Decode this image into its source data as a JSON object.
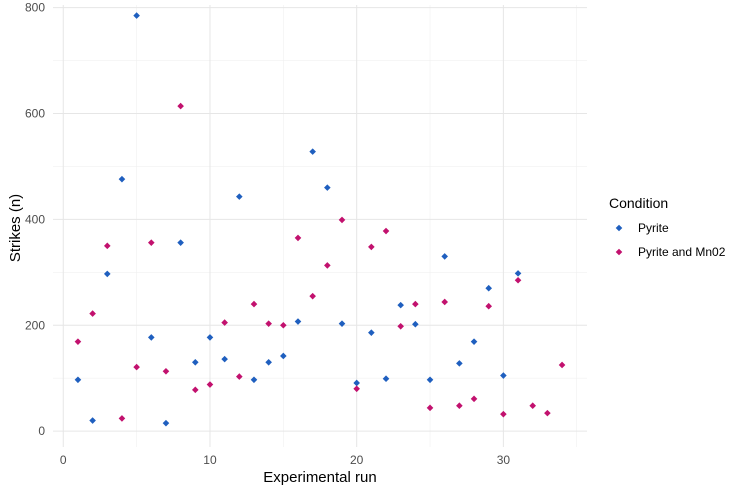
{
  "chart_data": {
    "type": "scatter",
    "title": "",
    "xlabel": "Experimental run",
    "ylabel": "Strikes (n)",
    "xlim": [
      -0.7,
      35.7
    ],
    "ylim": [
      -30,
      805
    ],
    "x_ticks": [
      0,
      10,
      20,
      30
    ],
    "x_tick_labels": [
      "0",
      "10",
      "20",
      "30"
    ],
    "y_ticks": [
      0,
      200,
      400,
      600,
      800
    ],
    "y_tick_labels": [
      "0",
      "200",
      "400",
      "600",
      "800"
    ],
    "grid": true,
    "legend": {
      "title": "Condition",
      "position": "right"
    },
    "series": [
      {
        "name": "Pyrite",
        "color": "#1F5FBF",
        "points": [
          {
            "x": 1,
            "y": 97
          },
          {
            "x": 2,
            "y": 20
          },
          {
            "x": 3,
            "y": 297
          },
          {
            "x": 4,
            "y": 476
          },
          {
            "x": 5,
            "y": 785
          },
          {
            "x": 6,
            "y": 177
          },
          {
            "x": 7,
            "y": 15
          },
          {
            "x": 8,
            "y": 356
          },
          {
            "x": 9,
            "y": 130
          },
          {
            "x": 10,
            "y": 177
          },
          {
            "x": 11,
            "y": 136
          },
          {
            "x": 12,
            "y": 443
          },
          {
            "x": 13,
            "y": 97
          },
          {
            "x": 14,
            "y": 130
          },
          {
            "x": 15,
            "y": 142
          },
          {
            "x": 16,
            "y": 207
          },
          {
            "x": 17,
            "y": 528
          },
          {
            "x": 18,
            "y": 460
          },
          {
            "x": 19,
            "y": 203
          },
          {
            "x": 20,
            "y": 91
          },
          {
            "x": 21,
            "y": 186
          },
          {
            "x": 22,
            "y": 99
          },
          {
            "x": 23,
            "y": 238
          },
          {
            "x": 24,
            "y": 202
          },
          {
            "x": 25,
            "y": 97
          },
          {
            "x": 26,
            "y": 330
          },
          {
            "x": 27,
            "y": 128
          },
          {
            "x": 28,
            "y": 169
          },
          {
            "x": 29,
            "y": 270
          },
          {
            "x": 30,
            "y": 105
          },
          {
            "x": 31,
            "y": 298
          }
        ]
      },
      {
        "name": "Pyrite and Mn02",
        "color": "#C2116E",
        "points": [
          {
            "x": 1,
            "y": 169
          },
          {
            "x": 2,
            "y": 222
          },
          {
            "x": 3,
            "y": 350
          },
          {
            "x": 4,
            "y": 24
          },
          {
            "x": 5,
            "y": 121
          },
          {
            "x": 6,
            "y": 356
          },
          {
            "x": 7,
            "y": 113
          },
          {
            "x": 8,
            "y": 614
          },
          {
            "x": 9,
            "y": 78
          },
          {
            "x": 10,
            "y": 88
          },
          {
            "x": 11,
            "y": 205
          },
          {
            "x": 12,
            "y": 103
          },
          {
            "x": 13,
            "y": 240
          },
          {
            "x": 14,
            "y": 203
          },
          {
            "x": 15,
            "y": 200
          },
          {
            "x": 16,
            "y": 365
          },
          {
            "x": 17,
            "y": 255
          },
          {
            "x": 18,
            "y": 313
          },
          {
            "x": 19,
            "y": 399
          },
          {
            "x": 20,
            "y": 80
          },
          {
            "x": 21,
            "y": 348
          },
          {
            "x": 22,
            "y": 378
          },
          {
            "x": 23,
            "y": 198
          },
          {
            "x": 24,
            "y": 240
          },
          {
            "x": 25,
            "y": 44
          },
          {
            "x": 26,
            "y": 244
          },
          {
            "x": 27,
            "y": 48
          },
          {
            "x": 28,
            "y": 61
          },
          {
            "x": 29,
            "y": 236
          },
          {
            "x": 30,
            "y": 32
          },
          {
            "x": 31,
            "y": 285
          },
          {
            "x": 32,
            "y": 48
          },
          {
            "x": 33,
            "y": 34
          },
          {
            "x": 34,
            "y": 125
          }
        ]
      }
    ]
  }
}
